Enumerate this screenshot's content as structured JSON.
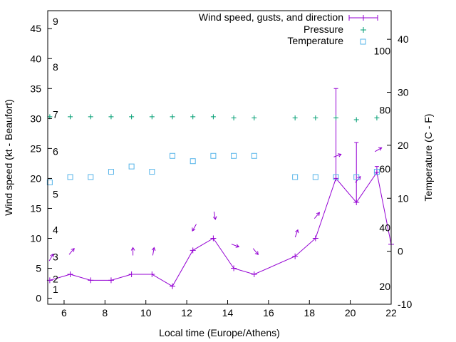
{
  "chart_data": {
    "type": "line",
    "x": [
      5.3,
      6.3,
      7.3,
      8.3,
      9.3,
      10.3,
      11.3,
      12.3,
      13.3,
      14.3,
      15.3,
      17.3,
      18.3,
      19.3,
      20.3,
      21.3,
      22.0
    ],
    "xlabel": "Local time (Europe/Athens)",
    "xlim": [
      5.2,
      22
    ],
    "xticks": [
      "6",
      "8",
      "10",
      "12",
      "14",
      "16",
      "18",
      "20",
      "22"
    ],
    "ylabel_left": "Wind speed (kt - Beaufort)",
    "ylim_left": [
      -1,
      48
    ],
    "yticks_left": [
      "0",
      "5",
      "10",
      "15",
      "20",
      "25",
      "30",
      "35",
      "40",
      "45"
    ],
    "ylabel_right": "Temperature (C - F)",
    "ylim_right": [
      -10,
      45.4
    ],
    "yticks_right": [
      "-10",
      "0",
      "10",
      "20",
      "30",
      "40"
    ],
    "beaufort_labels": [
      "1",
      "2",
      "3",
      "4",
      "5",
      "6",
      "7",
      "8",
      "9"
    ],
    "fahrenheit_labels": [
      "20",
      "40",
      "60",
      "80",
      "100"
    ],
    "legend_position": "top-right",
    "series": [
      {
        "name": "Wind speed, gusts, and direction",
        "color": "#9400d3",
        "values": [
          3,
          4,
          3,
          3,
          4,
          4,
          2,
          8,
          10,
          5,
          4,
          7,
          10,
          20,
          16,
          21,
          9
        ],
        "gusts": [
          null,
          null,
          null,
          null,
          null,
          null,
          null,
          null,
          null,
          null,
          null,
          null,
          null,
          35,
          26,
          22,
          null
        ],
        "direction_deg": [
          210,
          220,
          null,
          null,
          180,
          190,
          null,
          30,
          350,
          290,
          320,
          200,
          220,
          250,
          220,
          240,
          null
        ]
      },
      {
        "name": "Pressure",
        "color": "#009e73",
        "values": [
          30.3,
          30.3,
          30.3,
          30.3,
          30.3,
          30.3,
          30.3,
          30.3,
          30.3,
          30.1,
          30.1,
          30.1,
          30.1,
          30.1,
          29.8,
          30.1,
          null
        ]
      },
      {
        "name": "Temperature",
        "color": "#56b4e9",
        "values": [
          13,
          14,
          14,
          15,
          16,
          15,
          18,
          17,
          18,
          18,
          18,
          14,
          14,
          14,
          14,
          15,
          null
        ]
      }
    ]
  }
}
